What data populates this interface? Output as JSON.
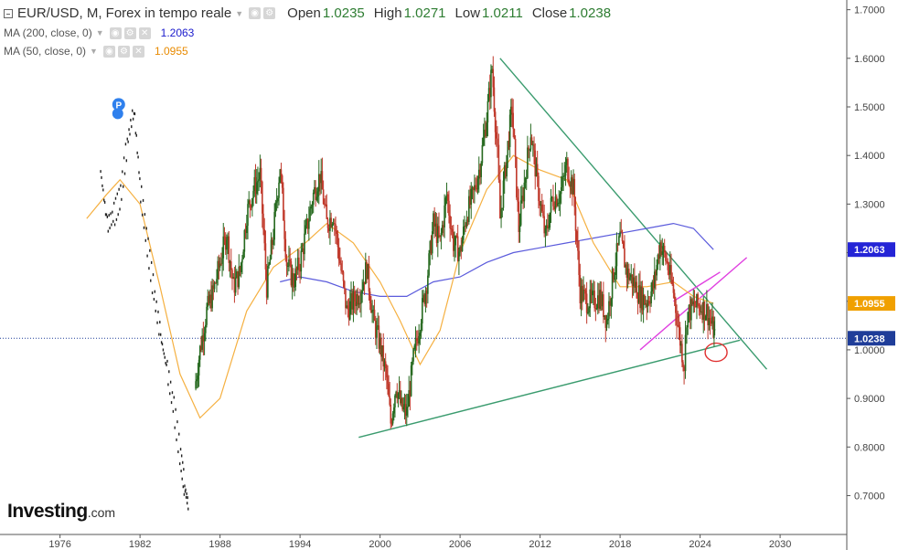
{
  "header": {
    "symbol": "EUR/USD, M, Forex in tempo reale",
    "open_label": "Open",
    "open_value": "1.0235",
    "high_label": "High",
    "high_value": "1.0271",
    "low_label": "Low",
    "low_value": "1.0211",
    "close_label": "Close",
    "close_value": "1.0238",
    "ma200_label": "MA (200, close, 0)",
    "ma200_value": "1.2063",
    "ma50_label": "MA (50, close, 0)",
    "ma50_value": "1.0955"
  },
  "logo": {
    "main": "Investing",
    "suffix": ".com"
  },
  "colors": {
    "up": "#26691f",
    "down": "#c0392b",
    "ma200": "#5b5bdc",
    "ma50": "#f5b041",
    "trend_green": "#3a9b6e",
    "channel_magenta": "#e040e0",
    "circle_red": "#e03030",
    "axis_text": "#444444",
    "price_line": "#1f3d99"
  },
  "marker": {
    "letter": "P"
  },
  "chart_data": {
    "type": "candlestick",
    "title": "EUR/USD, M, Forex in tempo reale",
    "xlabel": "",
    "ylabel": "",
    "xlim": [
      1971.5,
      2035.0
    ],
    "ylim": [
      0.62,
      1.72
    ],
    "x_ticks": [
      1976,
      1982,
      1988,
      1994,
      2000,
      2006,
      2012,
      2018,
      2024,
      2030
    ],
    "x_tick_labels": [
      "1976",
      "1982",
      "1988",
      "1994",
      "2000",
      "2006",
      "2012",
      "2018",
      "2024",
      "2030"
    ],
    "y_ticks": [
      0.7,
      0.8,
      0.9,
      1.0,
      1.1,
      1.2,
      1.3,
      1.4,
      1.5,
      1.6,
      1.7
    ],
    "y_tick_labels": [
      "0.7000",
      "0.8000",
      "0.9000",
      "1.0000",
      "1.1000",
      "1.2000",
      "1.3000",
      "1.4000",
      "1.5000",
      "1.6000",
      "1.7000"
    ],
    "price_badges": [
      {
        "label": "1.2063",
        "value": 1.2063,
        "color": "#2424d6"
      },
      {
        "label": "1.0955",
        "value": 1.0955,
        "color": "#f0a000"
      },
      {
        "label": "1.0238",
        "value": 1.0238,
        "color": "#1f3d99"
      }
    ],
    "current_price": 1.0238,
    "price_path": [
      [
        1986.1,
        0.92
      ],
      [
        1986.5,
        1.0
      ],
      [
        1987.0,
        1.08
      ],
      [
        1987.5,
        1.12
      ],
      [
        1988.0,
        1.18
      ],
      [
        1988.5,
        1.24
      ],
      [
        1989.0,
        1.13
      ],
      [
        1989.5,
        1.16
      ],
      [
        1990.0,
        1.28
      ],
      [
        1990.5,
        1.33
      ],
      [
        1991.0,
        1.36
      ],
      [
        1991.5,
        1.13
      ],
      [
        1992.0,
        1.24
      ],
      [
        1992.5,
        1.38
      ],
      [
        1993.0,
        1.18
      ],
      [
        1993.5,
        1.14
      ],
      [
        1994.0,
        1.18
      ],
      [
        1994.5,
        1.25
      ],
      [
        1995.0,
        1.32
      ],
      [
        1995.5,
        1.36
      ],
      [
        1996.0,
        1.26
      ],
      [
        1996.5,
        1.28
      ],
      [
        1997.0,
        1.18
      ],
      [
        1997.5,
        1.08
      ],
      [
        1998.0,
        1.1
      ],
      [
        1998.5,
        1.12
      ],
      [
        1999.0,
        1.17
      ],
      [
        1999.5,
        1.06
      ],
      [
        2000.0,
        1.01
      ],
      [
        2000.5,
        0.94
      ],
      [
        2000.8,
        0.85
      ],
      [
        2001.2,
        0.93
      ],
      [
        2001.6,
        0.88
      ],
      [
        2002.0,
        0.87
      ],
      [
        2002.5,
        0.98
      ],
      [
        2003.0,
        1.06
      ],
      [
        2003.5,
        1.14
      ],
      [
        2004.0,
        1.26
      ],
      [
        2004.5,
        1.22
      ],
      [
        2005.0,
        1.32
      ],
      [
        2005.5,
        1.22
      ],
      [
        2006.0,
        1.2
      ],
      [
        2006.5,
        1.28
      ],
      [
        2007.0,
        1.32
      ],
      [
        2007.5,
        1.38
      ],
      [
        2008.0,
        1.48
      ],
      [
        2008.4,
        1.58
      ],
      [
        2008.8,
        1.4
      ],
      [
        2009.0,
        1.27
      ],
      [
        2009.5,
        1.4
      ],
      [
        2009.9,
        1.5
      ],
      [
        2010.4,
        1.25
      ],
      [
        2010.9,
        1.36
      ],
      [
        2011.3,
        1.45
      ],
      [
        2011.8,
        1.34
      ],
      [
        2012.4,
        1.23
      ],
      [
        2012.9,
        1.31
      ],
      [
        2013.5,
        1.32
      ],
      [
        2014.0,
        1.38
      ],
      [
        2014.5,
        1.33
      ],
      [
        2015.0,
        1.12
      ],
      [
        2015.5,
        1.1
      ],
      [
        2016.0,
        1.1
      ],
      [
        2016.5,
        1.11
      ],
      [
        2017.0,
        1.06
      ],
      [
        2017.5,
        1.16
      ],
      [
        2018.0,
        1.23
      ],
      [
        2018.5,
        1.16
      ],
      [
        2019.0,
        1.14
      ],
      [
        2019.5,
        1.11
      ],
      [
        2020.0,
        1.1
      ],
      [
        2020.5,
        1.13
      ],
      [
        2021.0,
        1.22
      ],
      [
        2021.5,
        1.18
      ],
      [
        2022.0,
        1.12
      ],
      [
        2022.5,
        1.02
      ],
      [
        2022.8,
        0.97
      ],
      [
        2023.0,
        1.07
      ],
      [
        2023.5,
        1.09
      ],
      [
        2024.0,
        1.09
      ],
      [
        2024.5,
        1.08
      ],
      [
        2025.0,
        1.04
      ],
      [
        2025.1,
        1.0238
      ]
    ],
    "pre_euro_dots": [
      [
        1979.0,
        1.37
      ],
      [
        1979.5,
        1.26
      ],
      [
        1980.0,
        1.28
      ],
      [
        1980.5,
        1.32
      ],
      [
        1981.0,
        1.43
      ],
      [
        1981.5,
        1.5
      ],
      [
        1982.0,
        1.33
      ],
      [
        1982.5,
        1.22
      ],
      [
        1983.0,
        1.12
      ],
      [
        1983.5,
        1.03
      ],
      [
        1984.0,
        0.96
      ],
      [
        1984.5,
        0.88
      ],
      [
        1985.0,
        0.78
      ],
      [
        1985.3,
        0.72
      ],
      [
        1985.6,
        0.68
      ]
    ],
    "ma200": [
      [
        1992.5,
        1.14
      ],
      [
        1994.0,
        1.15
      ],
      [
        1996.0,
        1.14
      ],
      [
        1998.0,
        1.12
      ],
      [
        2000.0,
        1.11
      ],
      [
        2002.0,
        1.11
      ],
      [
        2004.0,
        1.14
      ],
      [
        2006.0,
        1.15
      ],
      [
        2008.0,
        1.18
      ],
      [
        2010.0,
        1.2
      ],
      [
        2012.0,
        1.21
      ],
      [
        2014.0,
        1.22
      ],
      [
        2016.0,
        1.23
      ],
      [
        2018.0,
        1.24
      ],
      [
        2020.0,
        1.25
      ],
      [
        2022.0,
        1.26
      ],
      [
        2023.5,
        1.25
      ],
      [
        2025.0,
        1.2063
      ]
    ],
    "ma50": [
      [
        1978.0,
        1.27
      ],
      [
        1979.5,
        1.32
      ],
      [
        1980.5,
        1.35
      ],
      [
        1982.0,
        1.3
      ],
      [
        1983.5,
        1.13
      ],
      [
        1985.0,
        0.95
      ],
      [
        1986.5,
        0.86
      ],
      [
        1988.0,
        0.9
      ],
      [
        1990.0,
        1.08
      ],
      [
        1992.0,
        1.17
      ],
      [
        1994.0,
        1.21
      ],
      [
        1996.0,
        1.26
      ],
      [
        1998.0,
        1.22
      ],
      [
        2000.0,
        1.14
      ],
      [
        2001.5,
        1.06
      ],
      [
        2003.0,
        0.97
      ],
      [
        2004.5,
        1.04
      ],
      [
        2006.0,
        1.2
      ],
      [
        2008.0,
        1.33
      ],
      [
        2010.0,
        1.4
      ],
      [
        2012.0,
        1.37
      ],
      [
        2014.0,
        1.35
      ],
      [
        2016.0,
        1.22
      ],
      [
        2018.0,
        1.13
      ],
      [
        2020.0,
        1.13
      ],
      [
        2022.0,
        1.14
      ],
      [
        2023.5,
        1.11
      ],
      [
        2025.0,
        1.0955
      ]
    ],
    "lines": [
      {
        "name": "descending-trendline",
        "from": [
          2009.0,
          1.6
        ],
        "to": [
          2029.0,
          0.96
        ],
        "color": "#3a9b6e"
      },
      {
        "name": "ascending-trendline",
        "from": [
          1998.4,
          0.82
        ],
        "to": [
          2027.0,
          1.02
        ],
        "color": "#3a9b6e"
      },
      {
        "name": "channel-upper",
        "from": [
          2022.0,
          1.1
        ],
        "to": [
          2025.5,
          1.16
        ],
        "color": "#e040e0"
      },
      {
        "name": "channel-lower",
        "from": [
          2019.5,
          1.0
        ],
        "to": [
          2027.5,
          1.19
        ],
        "color": "#e040e0"
      }
    ],
    "circle": {
      "x": 2025.2,
      "y": 0.995
    },
    "grid": false,
    "legend": "none"
  }
}
